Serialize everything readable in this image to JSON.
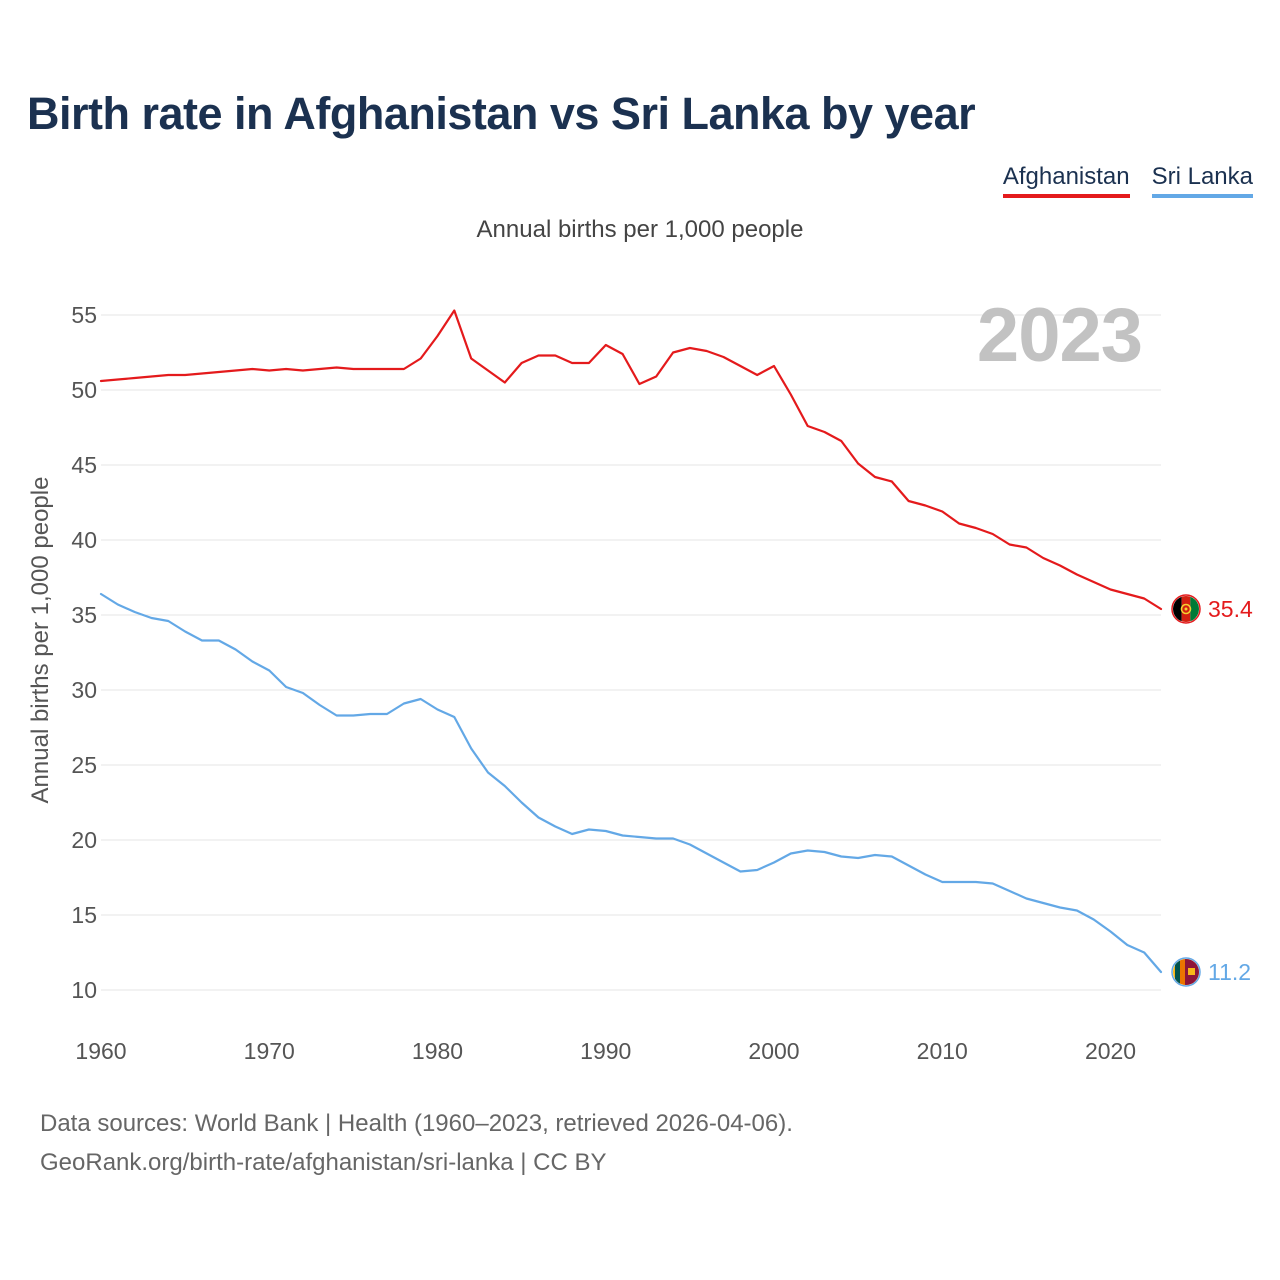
{
  "title": "Birth rate in Afghanistan vs Sri Lanka by year",
  "subtitle": "Annual births per 1,000 people",
  "current_year_label": "2023",
  "legend": [
    {
      "label": "Afghanistan",
      "color": "#e41a1c"
    },
    {
      "label": "Sri Lanka",
      "color": "#63a8e6"
    }
  ],
  "footer": {
    "line1": "Data sources: World Bank | Health (1960–2023, retrieved 2026-04-06).",
    "line2": "GeoRank.org/birth-rate/afghanistan/sri-lanka | CC BY"
  },
  "chart_data": {
    "type": "line",
    "title": "Birth rate in Afghanistan vs Sri Lanka by year",
    "xlabel": "",
    "ylabel": "Annual births per 1,000 people",
    "xlim": [
      1960,
      2023
    ],
    "ylim": [
      10,
      55
    ],
    "x_ticks": [
      1960,
      1970,
      1980,
      1990,
      2000,
      2010,
      2020
    ],
    "y_ticks": [
      10,
      15,
      20,
      25,
      30,
      35,
      40,
      45,
      50,
      55
    ],
    "grid": true,
    "legend_position": "top-right",
    "x": [
      1960,
      1961,
      1962,
      1963,
      1964,
      1965,
      1966,
      1967,
      1968,
      1969,
      1970,
      1971,
      1972,
      1973,
      1974,
      1975,
      1976,
      1977,
      1978,
      1979,
      1980,
      1981,
      1982,
      1983,
      1984,
      1985,
      1986,
      1987,
      1988,
      1989,
      1990,
      1991,
      1992,
      1993,
      1994,
      1995,
      1996,
      1997,
      1998,
      1999,
      2000,
      2001,
      2002,
      2003,
      2004,
      2005,
      2006,
      2007,
      2008,
      2009,
      2010,
      2011,
      2012,
      2013,
      2014,
      2015,
      2016,
      2017,
      2018,
      2019,
      2020,
      2021,
      2022,
      2023
    ],
    "series": [
      {
        "name": "Afghanistan",
        "color": "#e41a1c",
        "end_label": "35.4",
        "values": [
          50.6,
          50.7,
          50.8,
          50.9,
          51.0,
          51.0,
          51.1,
          51.2,
          51.3,
          51.4,
          51.3,
          51.4,
          51.3,
          51.4,
          51.5,
          51.4,
          51.4,
          51.4,
          51.4,
          52.1,
          53.6,
          55.3,
          52.1,
          51.3,
          50.5,
          51.8,
          52.3,
          52.3,
          51.8,
          51.8,
          53.0,
          52.4,
          50.4,
          50.9,
          52.5,
          52.8,
          52.6,
          52.2,
          51.6,
          51.0,
          51.6,
          49.7,
          47.6,
          47.2,
          46.6,
          45.1,
          44.2,
          43.9,
          42.6,
          42.3,
          41.9,
          41.1,
          40.8,
          40.4,
          39.7,
          39.5,
          38.8,
          38.3,
          37.7,
          37.2,
          36.7,
          36.4,
          36.1,
          35.4
        ]
      },
      {
        "name": "Sri Lanka",
        "color": "#63a8e6",
        "end_label": "11.2",
        "values": [
          36.4,
          35.7,
          35.2,
          34.8,
          34.6,
          33.9,
          33.3,
          33.3,
          32.7,
          31.9,
          31.3,
          30.2,
          29.8,
          29.0,
          28.3,
          28.3,
          28.4,
          28.4,
          29.1,
          29.4,
          28.7,
          28.2,
          26.1,
          24.5,
          23.6,
          22.5,
          21.5,
          20.9,
          20.4,
          20.7,
          20.6,
          20.3,
          20.2,
          20.1,
          20.1,
          19.7,
          19.1,
          18.5,
          17.9,
          18.0,
          18.5,
          19.1,
          19.3,
          19.2,
          18.9,
          18.8,
          19.0,
          18.9,
          18.3,
          17.7,
          17.2,
          17.2,
          17.2,
          17.1,
          16.6,
          16.1,
          15.8,
          15.5,
          15.3,
          14.7,
          13.9,
          13.0,
          12.5,
          11.2
        ]
      }
    ]
  }
}
